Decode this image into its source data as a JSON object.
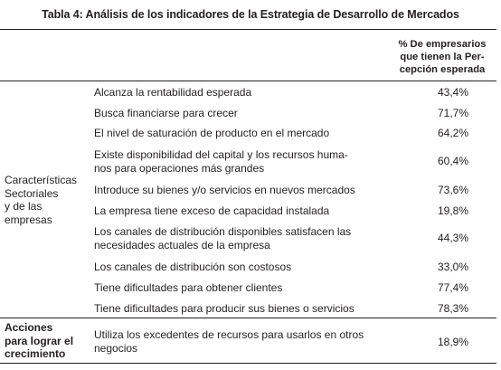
{
  "title": "Tabla 4: Análisis de los indicadores de la Estrategia de Desarrollo de Mercados",
  "column_header": [
    "% De empresarios",
    "que tienen la Per-",
    "cepción esperada"
  ],
  "groups": [
    {
      "label": [
        "Características",
        "Sectoriales",
        "y de las",
        "empresas"
      ],
      "bold": false
    },
    {
      "label": [
        "Acciones",
        "para lograr el",
        "crecimiento"
      ],
      "bold": true
    }
  ],
  "rows": [
    {
      "label": [
        "Alcanza la rentabilidad esperada"
      ],
      "value": "43,4%"
    },
    {
      "label": [
        "Busca financiarse para crecer"
      ],
      "value": "71,7%"
    },
    {
      "label": [
        "El nivel de saturación de producto en el mercado"
      ],
      "value": "64,2%"
    },
    {
      "label": [
        "Existe disponibilidad del capital y los recursos huma-",
        "nos para operaciones más grandes"
      ],
      "value": "60,4%"
    },
    {
      "label": [
        "Introduce su bienes y/o servicios en nuevos mercados"
      ],
      "value": "73,6%"
    },
    {
      "label": [
        "La empresa tiene exceso de capacidad instalada"
      ],
      "value": "19,8%"
    },
    {
      "label": [
        "Los canales de distribución disponibles satisfacen las",
        "necesidades actuales de la empresa"
      ],
      "value": "44,3%"
    },
    {
      "label": [
        "Los canales de distribución son costosos"
      ],
      "value": "33,0%"
    },
    {
      "label": [
        "Tiene dificultades para obtener clientes"
      ],
      "value": "77,4%"
    },
    {
      "label": [
        "Tiene dificultades para producir sus bienes o servicios"
      ],
      "value": "78,3%"
    },
    {
      "label": [
        "Utiliza los excedentes de recursos para usarlos en otros",
        "negocios"
      ],
      "value": "18,9%"
    }
  ]
}
